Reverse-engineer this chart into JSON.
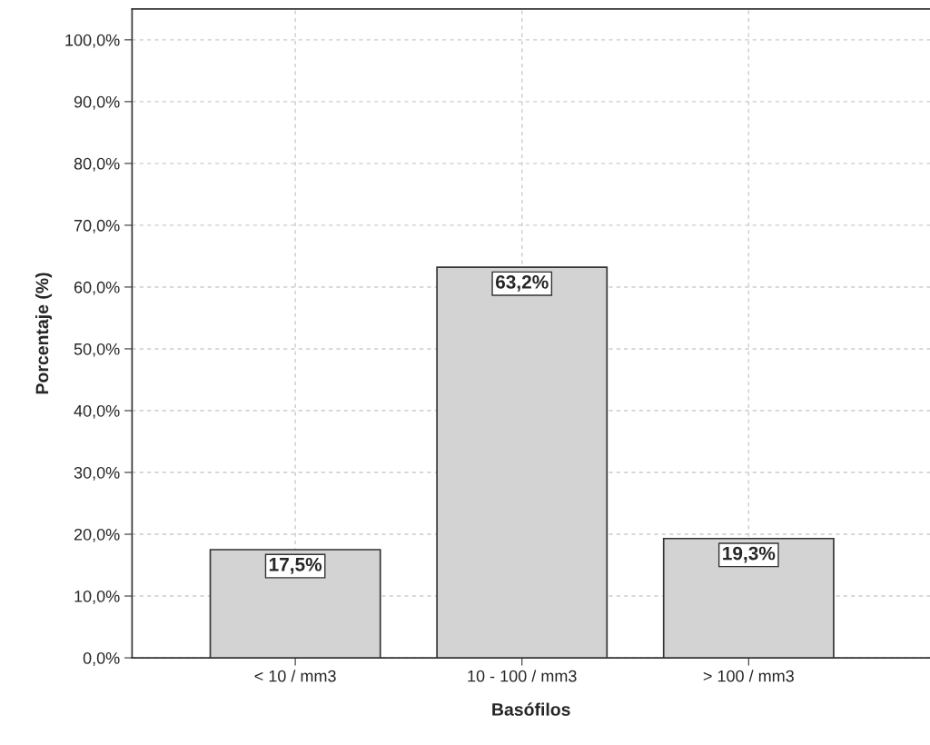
{
  "chart_data": {
    "type": "bar",
    "xlabel": "Basófilos",
    "ylabel": "Porcentaje (%)",
    "categories": [
      "< 10 / mm3",
      "10 - 100 / mm3",
      "> 100 / mm3"
    ],
    "values": [
      17.5,
      63.2,
      19.3
    ],
    "color": "#d3d3d3",
    "value_labels": [
      "17,5%",
      "63,2%",
      "19,3%"
    ],
    "ylim": [
      0,
      105
    ],
    "yticks": [
      {
        "value": 0,
        "label": "0,0%"
      },
      {
        "value": 10,
        "label": "10,0%"
      },
      {
        "value": 20,
        "label": "20,0%"
      },
      {
        "value": 30,
        "label": "30,0%"
      },
      {
        "value": 40,
        "label": "40,0%"
      },
      {
        "value": 50,
        "label": "50,0%"
      },
      {
        "value": 60,
        "label": "60,0%"
      },
      {
        "value": 70,
        "label": "70,0%"
      },
      {
        "value": 80,
        "label": "80,0%"
      },
      {
        "value": 90,
        "label": "90,0%"
      },
      {
        "value": 100,
        "label": "100,0%"
      }
    ],
    "grid": true
  }
}
